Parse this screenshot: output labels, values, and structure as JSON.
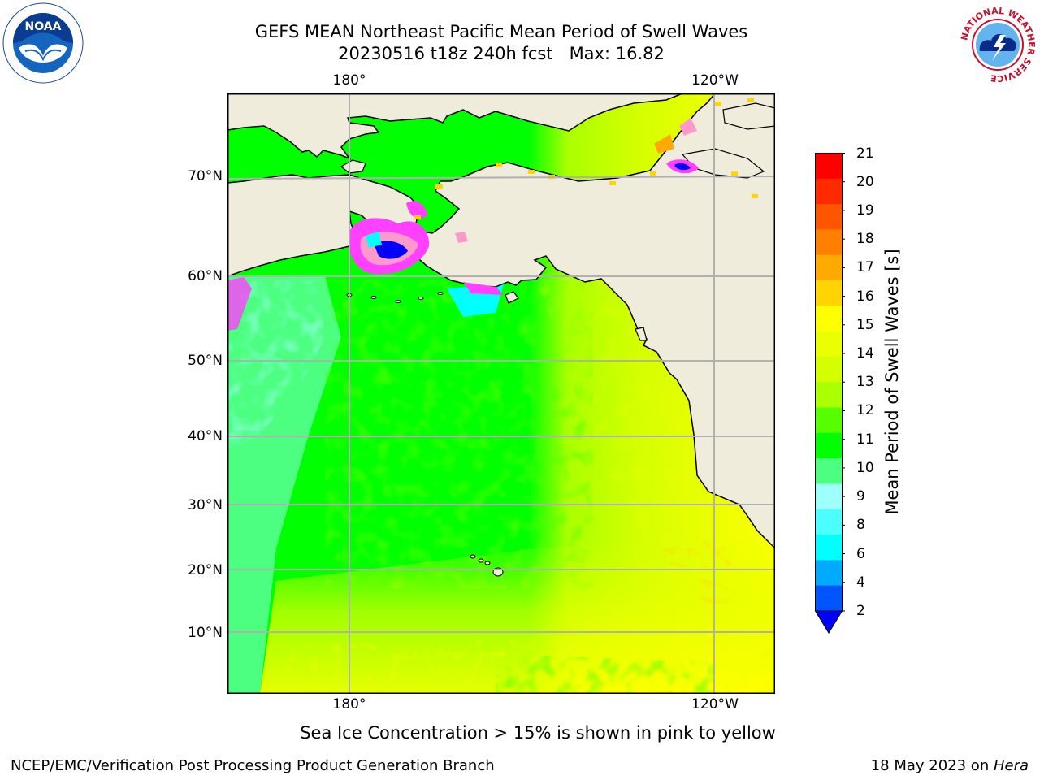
{
  "title": {
    "line1": "GEFS MEAN Northeast Pacific Mean Period of Swell Waves",
    "line2": "20230516 t18z 240h fcst   Max: 16.82"
  },
  "logos": {
    "left": {
      "name": "noaa-logo",
      "text": "NOAA"
    },
    "right": {
      "name": "nws-logo",
      "text": "NATIONAL WEATHER SERVICE"
    }
  },
  "map": {
    "lon_labels_top": [
      "180°",
      "120°W"
    ],
    "lon_labels_bottom": [
      "180°",
      "120°W"
    ],
    "lat_labels": [
      "70°N",
      "60°N",
      "50°N",
      "40°N",
      "30°N",
      "20°N",
      "10°N"
    ],
    "colors": {
      "land": "#efecdc",
      "coast": "#000000",
      "grid": "#b0b0b0",
      "ice": [
        "#ff40ff",
        "#ff99cc",
        "#ffff66"
      ]
    }
  },
  "colorbar": {
    "label": "Mean Period of Swell Waves [s]",
    "ticks": [
      "21",
      "20",
      "19",
      "18",
      "17",
      "16",
      "15",
      "14",
      "13",
      "12",
      "11",
      "10",
      "9",
      "8",
      "6",
      "4",
      "2"
    ],
    "colors_top_to_bottom": [
      "#ff0000",
      "#ff2a00",
      "#ff5500",
      "#ff8000",
      "#ffaa00",
      "#ffd400",
      "#ffff00",
      "#eaff00",
      "#d4ff00",
      "#aaff00",
      "#55ff00",
      "#00ff00",
      "#4cff80",
      "#9ffff9",
      "#4cffff",
      "#00ffff",
      "#00aaff",
      "#0055ff"
    ],
    "extend_color": "#0000ff"
  },
  "note": "Sea Ice Concentration > 15% is shown in pink to yellow",
  "footer": {
    "left": "NCEP/EMC/Verification Post Processing Product Generation Branch",
    "right_date": "18 May 2023 on ",
    "right_host": "Hera"
  }
}
